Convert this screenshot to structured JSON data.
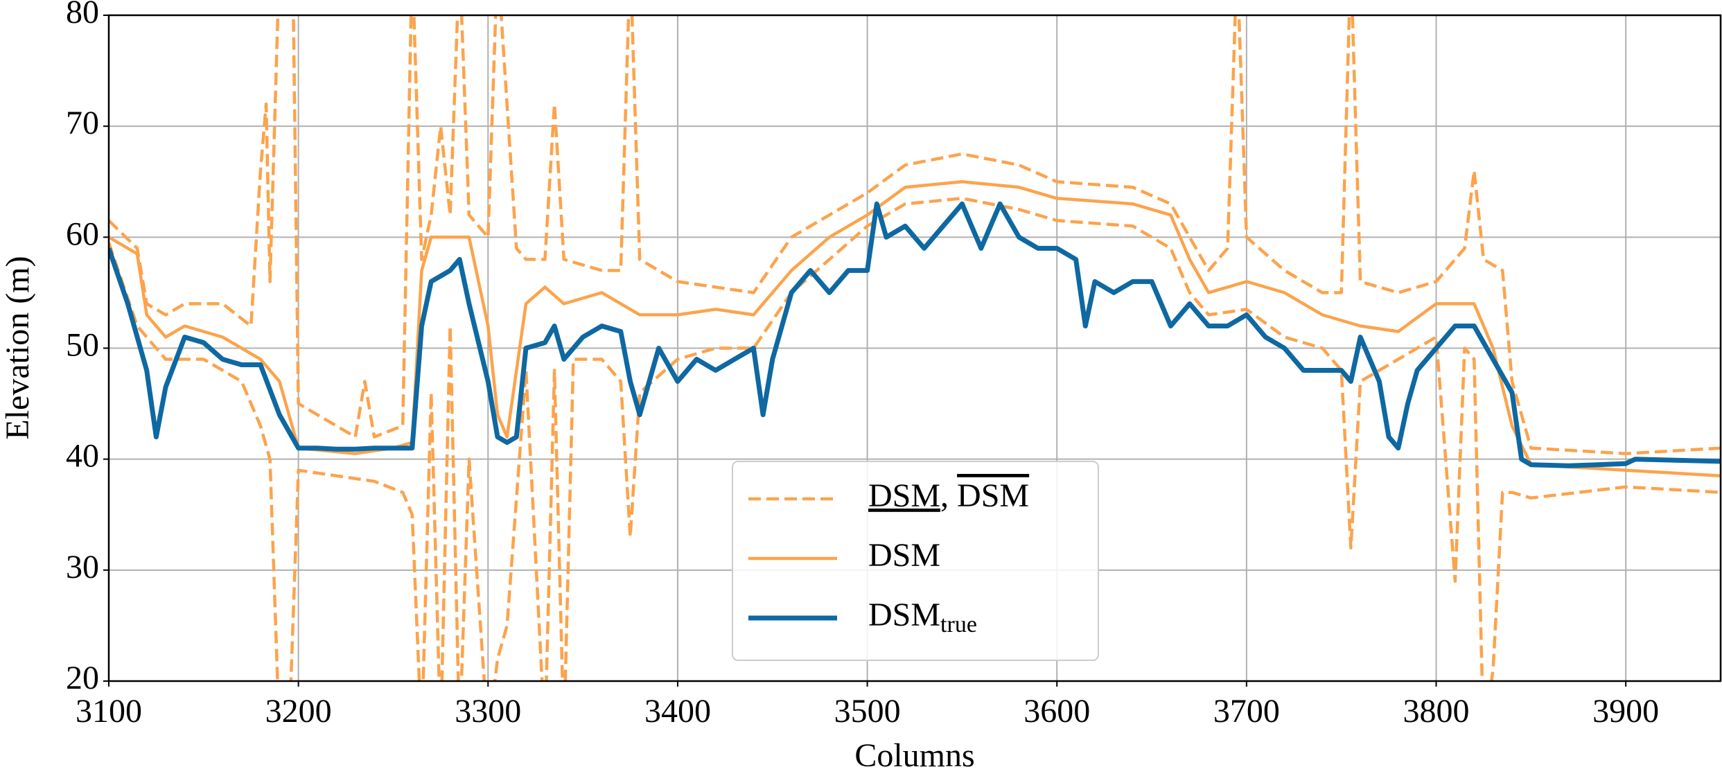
{
  "chart_data": {
    "type": "line",
    "xlabel": "Columns",
    "ylabel": "Elevation (m)",
    "xlim": [
      3100,
      3950
    ],
    "xticks": [
      3100,
      3200,
      3300,
      3400,
      3500,
      3600,
      3700,
      3800,
      3900
    ],
    "ylim": [
      20,
      80
    ],
    "yticks": [
      20,
      30,
      40,
      50,
      60,
      70,
      80
    ],
    "grid": true,
    "legend_position": "lower center",
    "legend_separator": ",",
    "series": [
      {
        "name": "DSM",
        "decoration": "underline",
        "style": "dashed",
        "color": "#fca34c",
        "x": [
          3100,
          3115,
          3120,
          3130,
          3150,
          3170,
          3180,
          3185,
          3190,
          3195,
          3200,
          3220,
          3240,
          3255,
          3260,
          3265,
          3270,
          3275,
          3280,
          3285,
          3290,
          3300,
          3305,
          3310,
          3320,
          3330,
          3335,
          3340,
          3345,
          3360,
          3370,
          3375,
          3380,
          3400,
          3420,
          3440,
          3460,
          3480,
          3500,
          3520,
          3550,
          3580,
          3600,
          3640,
          3660,
          3670,
          3680,
          3700,
          3720,
          3740,
          3750,
          3755,
          3760,
          3780,
          3800,
          3810,
          3815,
          3820,
          3825,
          3830,
          3835,
          3840,
          3850,
          3900,
          3950
        ],
        "values": [
          59.5,
          52,
          51,
          49,
          49,
          47,
          43,
          40,
          15,
          15,
          39,
          38.5,
          38,
          37,
          35,
          15,
          46,
          15,
          52,
          15,
          40,
          15,
          22,
          25,
          48,
          15,
          48,
          15,
          49,
          49,
          47,
          33,
          46,
          49,
          50,
          50,
          55,
          58,
          61,
          63,
          63.5,
          62.5,
          61.5,
          61,
          59,
          55,
          53,
          53.5,
          51,
          50,
          48,
          32,
          47,
          49,
          51,
          29,
          50,
          49,
          15,
          21,
          37,
          37,
          36.5,
          37.5,
          37
        ]
      },
      {
        "name": "DSM",
        "decoration": "overline",
        "style": "dashed",
        "color": "#fca34c",
        "x": [
          3100,
          3115,
          3120,
          3130,
          3140,
          3160,
          3175,
          3180,
          3183,
          3185,
          3190,
          3197,
          3200,
          3210,
          3230,
          3235,
          3240,
          3255,
          3260,
          3265,
          3270,
          3275,
          3280,
          3285,
          3290,
          3300,
          3305,
          3315,
          3320,
          3330,
          3335,
          3340,
          3360,
          3370,
          3375,
          3380,
          3400,
          3420,
          3440,
          3460,
          3480,
          3500,
          3520,
          3550,
          3580,
          3600,
          3640,
          3660,
          3670,
          3680,
          3690,
          3695,
          3700,
          3720,
          3740,
          3750,
          3755,
          3760,
          3780,
          3800,
          3815,
          3820,
          3825,
          3835,
          3840,
          3850,
          3900,
          3950
        ],
        "values": [
          61.5,
          59,
          54,
          53,
          54,
          54,
          52,
          66,
          72,
          56,
          85,
          85,
          45,
          44,
          42,
          47,
          42,
          43,
          85,
          58,
          62,
          70,
          62,
          85,
          62,
          60,
          85,
          59,
          58,
          58,
          72,
          58,
          57,
          57,
          85,
          58,
          56,
          55.5,
          55,
          60,
          62,
          64,
          66.5,
          67.5,
          66.5,
          65,
          64.5,
          63,
          60,
          57,
          59,
          85,
          60,
          57,
          55,
          55,
          85,
          56,
          55,
          56,
          59,
          66,
          58,
          57,
          47,
          41,
          40.5,
          41
        ]
      },
      {
        "name": "DSM",
        "style": "solid",
        "color": "#fca34c",
        "x": [
          3100,
          3115,
          3120,
          3130,
          3140,
          3160,
          3180,
          3190,
          3195,
          3200,
          3230,
          3250,
          3260,
          3265,
          3270,
          3290,
          3300,
          3305,
          3310,
          3320,
          3330,
          3340,
          3360,
          3380,
          3400,
          3420,
          3440,
          3460,
          3480,
          3500,
          3520,
          3550,
          3580,
          3600,
          3640,
          3660,
          3670,
          3680,
          3700,
          3720,
          3740,
          3760,
          3780,
          3800,
          3820,
          3830,
          3840,
          3850,
          3900,
          3950
        ],
        "values": [
          60,
          58.5,
          53,
          51,
          52,
          51,
          49,
          47,
          44,
          41,
          40.5,
          41,
          41.5,
          57,
          60,
          60,
          52,
          44,
          42,
          54,
          55.5,
          54,
          55,
          53,
          53,
          53.5,
          53,
          57,
          60,
          62,
          64.5,
          65,
          64.5,
          63.5,
          63,
          62,
          58,
          55,
          56,
          55,
          53,
          52,
          51.5,
          54,
          54,
          50,
          43,
          39.5,
          39,
          38.5
        ]
      },
      {
        "name": "DSM",
        "name_subscript": "true",
        "style": "solid",
        "color": "#0e68a2",
        "x": [
          3100,
          3110,
          3120,
          3125,
          3130,
          3140,
          3150,
          3160,
          3170,
          3180,
          3190,
          3200,
          3210,
          3220,
          3230,
          3240,
          3250,
          3260,
          3265,
          3270,
          3280,
          3285,
          3290,
          3300,
          3305,
          3310,
          3315,
          3320,
          3330,
          3335,
          3340,
          3350,
          3360,
          3370,
          3375,
          3380,
          3390,
          3400,
          3410,
          3420,
          3430,
          3440,
          3445,
          3450,
          3460,
          3470,
          3480,
          3490,
          3500,
          3505,
          3510,
          3520,
          3530,
          3540,
          3550,
          3560,
          3570,
          3580,
          3590,
          3600,
          3610,
          3615,
          3620,
          3630,
          3640,
          3650,
          3660,
          3670,
          3680,
          3690,
          3700,
          3710,
          3720,
          3730,
          3740,
          3750,
          3755,
          3760,
          3770,
          3775,
          3780,
          3785,
          3790,
          3800,
          3810,
          3820,
          3830,
          3840,
          3845,
          3850,
          3870,
          3900,
          3905,
          3950
        ],
        "values": [
          59,
          54,
          48,
          42,
          46.5,
          51,
          50.5,
          49,
          48.5,
          48.5,
          44,
          41,
          41,
          40.9,
          40.9,
          41,
          41,
          41,
          52,
          56,
          57,
          58,
          54,
          47,
          42,
          41.5,
          42,
          50,
          50.5,
          52,
          49,
          51,
          52,
          51.5,
          47,
          44,
          50,
          47,
          49,
          48,
          49,
          50,
          44,
          49,
          55,
          57,
          55,
          57,
          57,
          63,
          60,
          61,
          59,
          61,
          63,
          59,
          63,
          60,
          59,
          59,
          58,
          52,
          56,
          55,
          56,
          56,
          52,
          54,
          52,
          52,
          53,
          51,
          50,
          48,
          48,
          48,
          47,
          51,
          47,
          42,
          41,
          45,
          48,
          50,
          52,
          52,
          49,
          46,
          40,
          39.5,
          39.4,
          39.6,
          40,
          39.8
        ]
      }
    ]
  }
}
